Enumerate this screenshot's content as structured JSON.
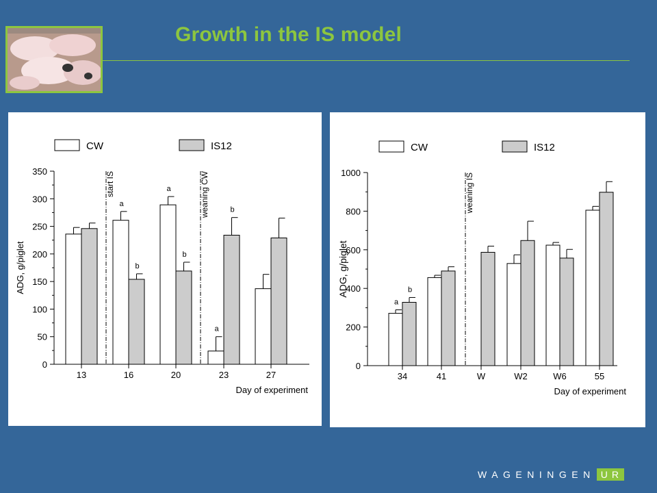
{
  "slide": {
    "title": "Growth in the IS model"
  },
  "logo": {
    "text": "WAGENINGEN",
    "suffix": "UR"
  },
  "colors": {
    "background": "#346699",
    "accent": "#8dc63f",
    "is12_fill": "#cccccc",
    "cw_fill": "#ffffff"
  },
  "photo": {
    "description_icon": "piglets-photo"
  },
  "chart_data": [
    {
      "type": "bar",
      "categories": [
        "13",
        "16",
        "20",
        "23",
        "27"
      ],
      "xlabel": "Day of experiment",
      "ylabel": "ADG, g/piglet",
      "ylim": [
        0,
        350
      ],
      "yticks": [
        0,
        50,
        100,
        150,
        200,
        250,
        300,
        350
      ],
      "legend": {
        "placement": "top",
        "entries": [
          "CW",
          "IS12"
        ]
      },
      "series": [
        {
          "name": "CW",
          "values": [
            236,
            261,
            289,
            24,
            137
          ],
          "errors": [
            12,
            16,
            15,
            26,
            26
          ],
          "letters": [
            "",
            "a",
            "a",
            "a",
            ""
          ]
        },
        {
          "name": "IS12",
          "values": [
            246,
            154,
            169,
            234,
            229
          ],
          "errors": [
            10,
            10,
            16,
            32,
            36
          ],
          "letters": [
            "",
            "b",
            "b",
            "b",
            ""
          ]
        }
      ],
      "annotations": [
        {
          "text": "start IS",
          "between": [
            "13",
            "16"
          ]
        },
        {
          "text": "weaning CW",
          "between": [
            "20",
            "23"
          ]
        }
      ]
    },
    {
      "type": "bar",
      "categories": [
        "34",
        "41",
        "W",
        "W2",
        "W6",
        "55"
      ],
      "xlabel": "Day of experiment",
      "ylabel": "ADG, g/piglet",
      "ylim": [
        0,
        1000
      ],
      "yticks": [
        0,
        200,
        400,
        600,
        800,
        1000
      ],
      "legend": {
        "placement": "top",
        "entries": [
          "CW",
          "IS12"
        ]
      },
      "series": [
        {
          "name": "CW",
          "values": [
            271,
            456,
            null,
            529,
            624,
            805
          ],
          "errors": [
            18,
            12,
            null,
            45,
            14,
            20
          ],
          "letters": [
            "a",
            "",
            "",
            "",
            "",
            ""
          ]
        },
        {
          "name": "IS12",
          "values": [
            328,
            490,
            587,
            648,
            557,
            898
          ],
          "errors": [
            25,
            22,
            32,
            100,
            45,
            55
          ],
          "letters": [
            "b",
            "",
            "",
            "",
            "",
            ""
          ]
        }
      ],
      "annotations": [
        {
          "text": "weaning IS",
          "between": [
            "41",
            "W"
          ]
        }
      ]
    }
  ]
}
